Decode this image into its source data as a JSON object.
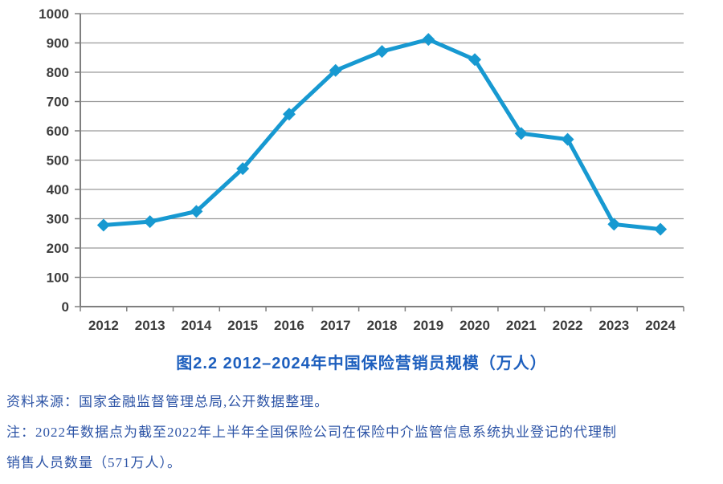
{
  "figure": {
    "title": "图2.2 2012–2024年中国保险营销员规模（万人）",
    "source": "资料来源：国家金融监督管理总局,公开数据整理。",
    "note_lines": [
      "注：2022年数据点为截至2022年上半年全国保险公司在保险中介监管信息系统执业登记的代理制",
      "销售人员数量（571万人）。"
    ]
  },
  "chart_data": {
    "type": "line",
    "title": "图2.2 2012–2024年中国保险营销员规模（万人）",
    "categories": [
      "2012",
      "2013",
      "2014",
      "2015",
      "2016",
      "2017",
      "2018",
      "2019",
      "2020",
      "2021",
      "2022",
      "2023",
      "2024"
    ],
    "values": [
      278,
      290,
      325,
      471,
      657,
      806,
      871,
      912,
      843,
      591,
      571,
      281,
      264
    ],
    "series_name": "保险营销员规模（万人）",
    "xlabel": "",
    "ylabel": "",
    "ylim": [
      0,
      1000
    ],
    "ytick_step": 100,
    "yticks": [
      0,
      100,
      200,
      300,
      400,
      500,
      600,
      700,
      800,
      900,
      1000
    ],
    "grid": true,
    "legend": "none",
    "marker": "diamond",
    "line_color": "#1799d1",
    "grid_color": "#9b9b9b",
    "axis_color": "#7f7f7f",
    "tick_label_color": "#3d3d3d"
  }
}
